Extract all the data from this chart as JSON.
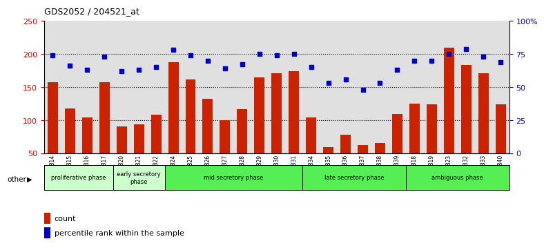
{
  "title": "GDS2052 / 204521_at",
  "samples": [
    "GSM109814",
    "GSM109815",
    "GSM109816",
    "GSM109817",
    "GSM109820",
    "GSM109821",
    "GSM109822",
    "GSM109824",
    "GSM109825",
    "GSM109826",
    "GSM109827",
    "GSM109828",
    "GSM109829",
    "GSM109830",
    "GSM109831",
    "GSM109834",
    "GSM109835",
    "GSM109836",
    "GSM109837",
    "GSM109838",
    "GSM109839",
    "GSM109818",
    "GSM109819",
    "GSM109823",
    "GSM109832",
    "GSM109833",
    "GSM109840"
  ],
  "counts": [
    157,
    118,
    104,
    157,
    90,
    94,
    108,
    188,
    162,
    132,
    100,
    117,
    165,
    171,
    174,
    104,
    59,
    78,
    62,
    65,
    109,
    125,
    124,
    210,
    183,
    171,
    124
  ],
  "percentiles": [
    74,
    66,
    63,
    73,
    62,
    63,
    65,
    78,
    74,
    70,
    64,
    67,
    75,
    74,
    75,
    65,
    53,
    56,
    48,
    53,
    63,
    70,
    70,
    75,
    79,
    73,
    69
  ],
  "bar_color": "#cc2200",
  "dot_color": "#0000cc",
  "ylim_left": [
    50,
    250
  ],
  "ylim_right": [
    0,
    100
  ],
  "yticks_left": [
    50,
    100,
    150,
    200,
    250
  ],
  "yticks_right": [
    0,
    25,
    50,
    75,
    100
  ],
  "ytick_labels_right": [
    "0",
    "25",
    "50",
    "75",
    "100%"
  ],
  "hlines": [
    100,
    150,
    200
  ],
  "phases": [
    {
      "label": "proliferative phase",
      "start": 0,
      "end": 4,
      "color": "#ccffcc"
    },
    {
      "label": "early secretory\nphase",
      "start": 4,
      "end": 7,
      "color": "#ccffcc"
    },
    {
      "label": "mid secretory phase",
      "start": 7,
      "end": 15,
      "color": "#55ee55"
    },
    {
      "label": "late secretory phase",
      "start": 15,
      "end": 21,
      "color": "#55ee55"
    },
    {
      "label": "ambiguous phase",
      "start": 21,
      "end": 27,
      "color": "#55ee55"
    }
  ],
  "phase_boundaries": [
    0,
    4,
    7,
    15,
    21,
    27
  ],
  "other_label": "other",
  "legend_count_label": "count",
  "legend_pct_label": "percentile rank within the sample",
  "bg_color": "#e0e0e0"
}
